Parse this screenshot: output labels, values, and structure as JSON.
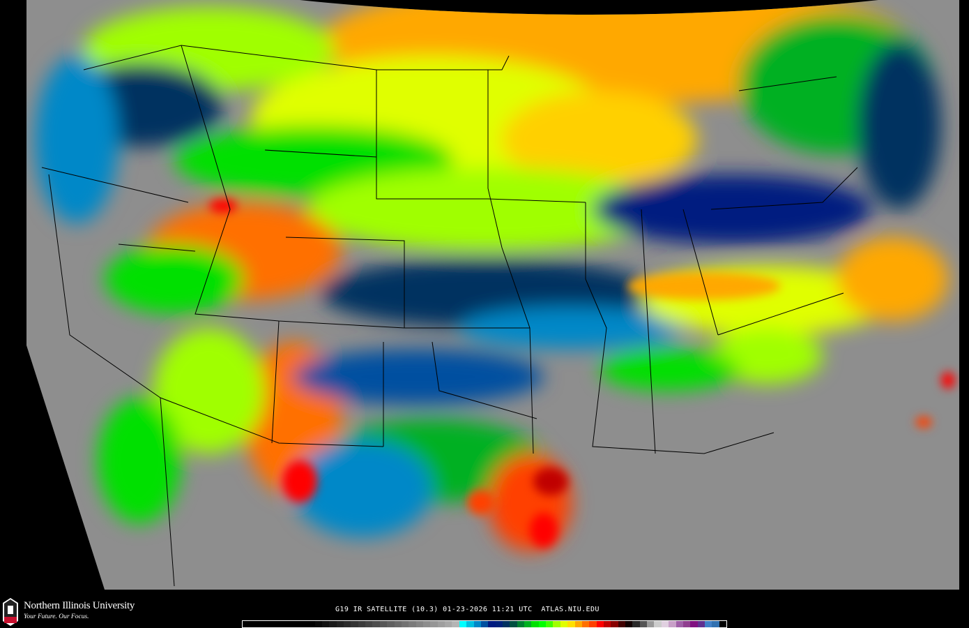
{
  "logo": {
    "name": "Northern Illinois University",
    "tagline": "Your Future. Our Focus.",
    "badge": "NIU"
  },
  "caption": "G19 IR SATELLITE (10.3) 01-23-2026 11:21 UTC  ATLAS.NIU.EDU",
  "colorbar": [
    "#000000",
    "#000000",
    "#000000",
    "#000000",
    "#000000",
    "#000000",
    "#000000",
    "#000000",
    "#000000",
    "#000000",
    "#080808",
    "#111111",
    "#1a1a1a",
    "#222222",
    "#2b2b2b",
    "#333333",
    "#3c3c3c",
    "#454545",
    "#4e4e4e",
    "#575757",
    "#606060",
    "#696969",
    "#727272",
    "#7b7b7b",
    "#848484",
    "#8d8d8d",
    "#969696",
    "#9f9f9f",
    "#a8a8a8",
    "#b4b4b4",
    "#00ffff",
    "#00c0e0",
    "#0088c8",
    "#0050a0",
    "#001a80",
    "#00207a",
    "#003060",
    "#005040",
    "#008030",
    "#00b020",
    "#00e000",
    "#00ff00",
    "#40ff00",
    "#a0ff00",
    "#e0ff00",
    "#ffe000",
    "#ffa800",
    "#ff7000",
    "#ff4000",
    "#ff0000",
    "#c00000",
    "#880000",
    "#400000",
    "#100000",
    "#282828",
    "#555555",
    "#999999",
    "#cccccc",
    "#e0d0e0",
    "#c8a0c8",
    "#a060a8",
    "#904090",
    "#801080",
    "#603090",
    "#4080c8",
    "#3070b0",
    "#000000"
  ],
  "colors": {
    "background": "#000000",
    "land_gray": "#8a8a8a",
    "border": "#000000",
    "text": "#ffffff"
  }
}
